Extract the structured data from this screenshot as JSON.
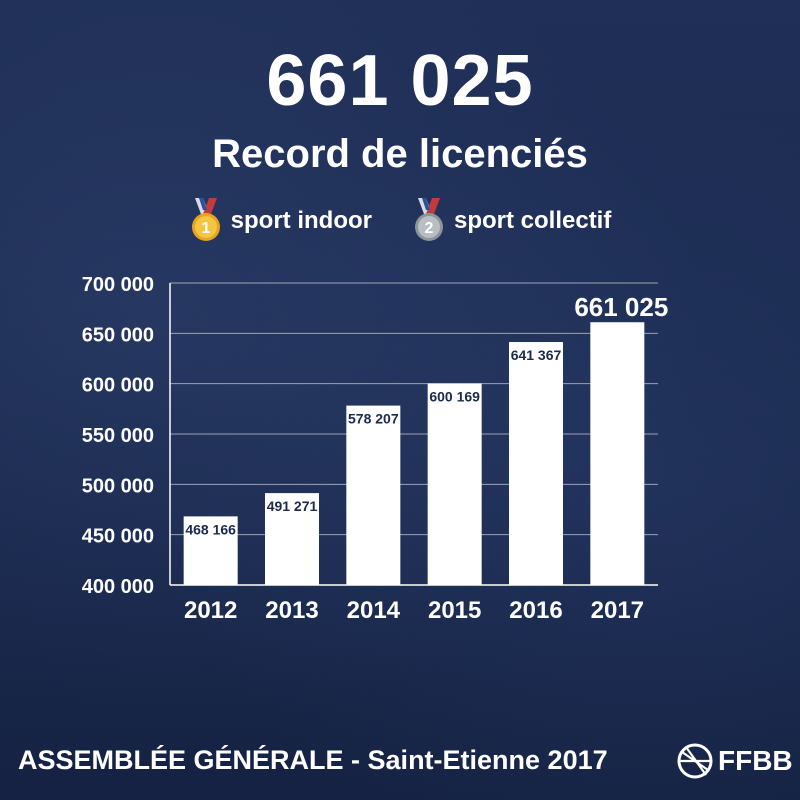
{
  "header": {
    "headline": "661 025",
    "subtitle": "Record de licenciés"
  },
  "medals": [
    {
      "icon": "gold-medal-icon",
      "number": "1",
      "label": "sport indoor",
      "color": "#f2b531"
    },
    {
      "icon": "silver-medal-icon",
      "number": "2",
      "label": "sport collectif",
      "color": "#a9aeb4"
    }
  ],
  "footer": {
    "text": "ASSEMBLÉE GÉNÉRALE - Saint-Etienne 2017",
    "logo_text": "FFBB"
  },
  "chart_data": {
    "type": "bar",
    "categories": [
      "2012",
      "2013",
      "2014",
      "2015",
      "2016",
      "2017"
    ],
    "values": [
      468166,
      491271,
      578207,
      600169,
      641367,
      661025
    ],
    "value_labels": [
      "468 166",
      "491 271",
      "578 207",
      "600 169",
      "641 367",
      "661 025"
    ],
    "y_ticks": [
      400000,
      450000,
      500000,
      550000,
      600000,
      650000,
      700000
    ],
    "y_tick_labels": [
      "400 000",
      "450 000",
      "500 000",
      "550 000",
      "600 000",
      "650 000",
      "700 000"
    ],
    "ylim": [
      400000,
      700000
    ],
    "grid": true,
    "bar_color": "#ffffff",
    "highlight_last": true
  }
}
